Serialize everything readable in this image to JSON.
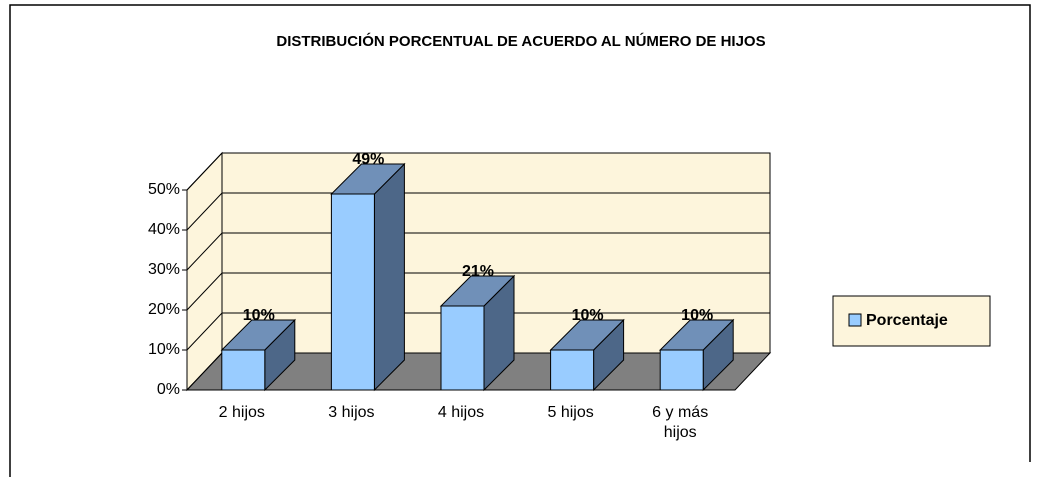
{
  "chart_data": {
    "type": "bar3d",
    "title": "DISTRIBUCIÓN PORCENTUAL DE ACUERDO AL NÚMERO DE HIJOS",
    "categories": [
      "2 hijos",
      "3 hijos",
      "4 hijos",
      "5 hijos",
      "6 y más hijos"
    ],
    "series": [
      {
        "name": "Porcentaje",
        "color": "#99ccff",
        "values": [
          10,
          49,
          21,
          10,
          10
        ],
        "value_labels": [
          "10%",
          "49%",
          "21%",
          "10%",
          "10%"
        ]
      }
    ],
    "ylim": [
      0,
      50
    ],
    "yticks": [
      {
        "value": 0,
        "label": "0%"
      },
      {
        "value": 10,
        "label": "10%"
      },
      {
        "value": 20,
        "label": "20%"
      },
      {
        "value": 30,
        "label": "30%"
      },
      {
        "value": 40,
        "label": "40%"
      },
      {
        "value": 50,
        "label": "50%"
      }
    ],
    "grid": true,
    "legend": "right"
  }
}
